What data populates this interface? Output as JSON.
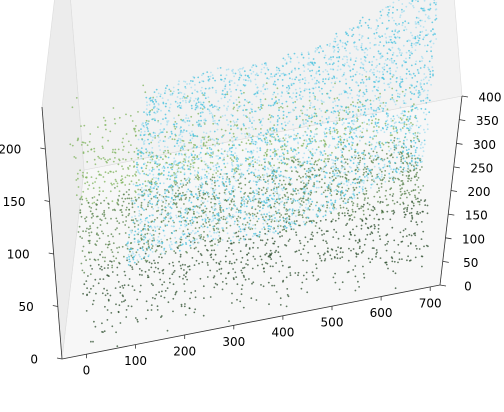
{
  "chart_data": {
    "type": "scatter",
    "projection": "3d",
    "title": "",
    "xlabel": "",
    "ylabel": "",
    "zlabel": "",
    "xlim": [
      -50,
      720
    ],
    "ylim": [
      0,
      400
    ],
    "zlim": [
      0,
      240
    ],
    "x_ticks": [
      0,
      100,
      200,
      300,
      400,
      500,
      600,
      700
    ],
    "y_ticks": [
      0,
      50,
      100,
      150,
      200,
      250,
      300,
      350,
      400
    ],
    "z_ticks": [
      0,
      50,
      100,
      150,
      200
    ],
    "x_tick_labels": [
      "0",
      "100",
      "200",
      "300",
      "400",
      "500",
      "600",
      "700"
    ],
    "y_tick_labels": [
      "0",
      "50",
      "100",
      "150",
      "200",
      "250",
      "300",
      "350",
      "400"
    ],
    "z_tick_labels": [
      "0",
      "50",
      "100",
      "150",
      "200"
    ],
    "grid": false,
    "series": [
      {
        "color": "#2e4f2f",
        "x_range": [
          0,
          700
        ],
        "y_range": [
          0,
          50
        ],
        "z_range": [
          20,
          230
        ]
      },
      {
        "color": "#7fb35c",
        "x_range": [
          0,
          700
        ],
        "y_range": [
          0,
          50
        ],
        "z_range": [
          80,
          235
        ]
      },
      {
        "color": "#4fc3df",
        "x_range": [
          0,
          700
        ],
        "y_range": [
          50,
          400
        ],
        "z_range": [
          40,
          120
        ]
      }
    ],
    "colors": {
      "pane": "#f2f2f2",
      "pane_edge": "#dcdcdc",
      "forest_dark": "#2e4f2f",
      "forest_light": "#7fb35c",
      "water": "#4fc3df",
      "water_light": "#a9dff0"
    }
  }
}
